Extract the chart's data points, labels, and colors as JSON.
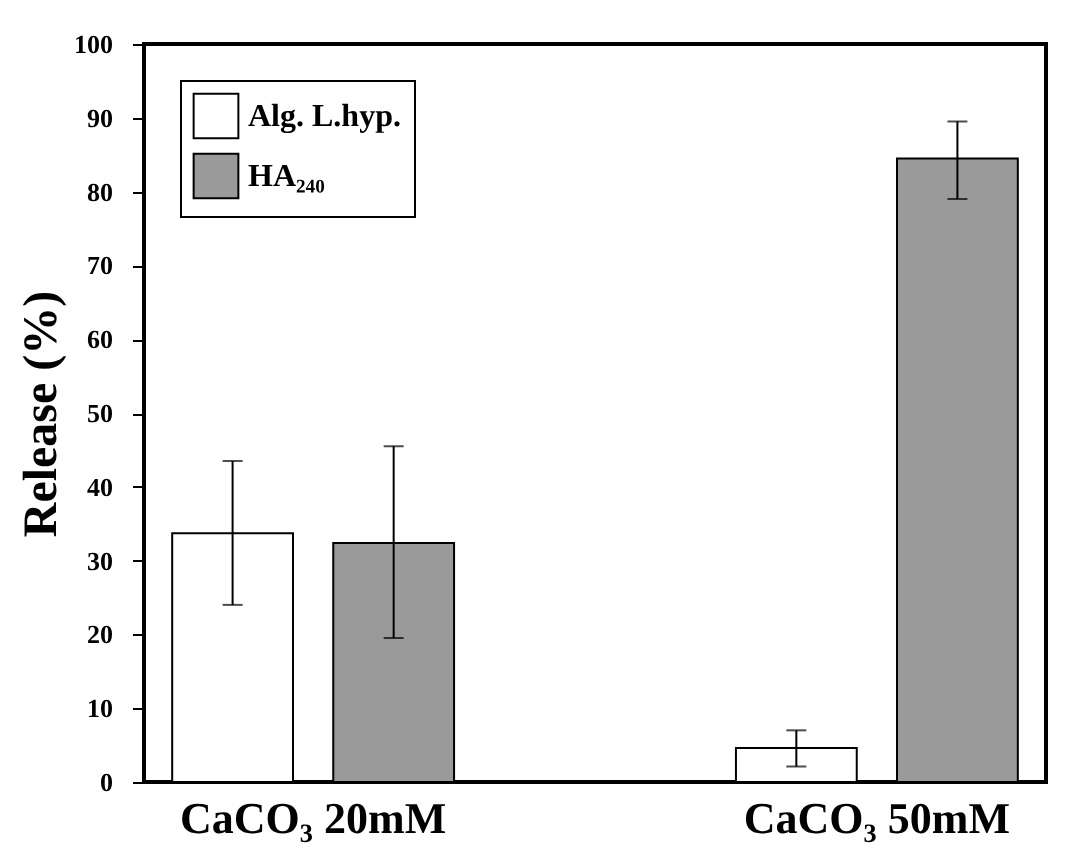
{
  "chart_data": {
    "type": "bar",
    "ylabel": "Release (%)",
    "categories": [
      "CaCO₃ 20mM",
      "CaCO₃ 50mM"
    ],
    "series": [
      {
        "name": "Alg. L.hyp.",
        "color": "#ffffff",
        "values": [
          33.7,
          4.6
        ],
        "errors": [
          [
            24,
            43.5
          ],
          [
            2.1,
            7
          ]
        ]
      },
      {
        "name": "HA₂₄₀",
        "color": "#9a9a9a",
        "values": [
          32.4,
          84.5
        ],
        "errors": [
          [
            19.5,
            45.5
          ],
          [
            79,
            89.5
          ]
        ]
      }
    ],
    "ylim": [
      0,
      100
    ],
    "yticks": [
      0,
      10,
      20,
      30,
      40,
      50,
      60,
      70,
      80,
      90,
      100
    ],
    "grid": false,
    "legend": "top left"
  }
}
